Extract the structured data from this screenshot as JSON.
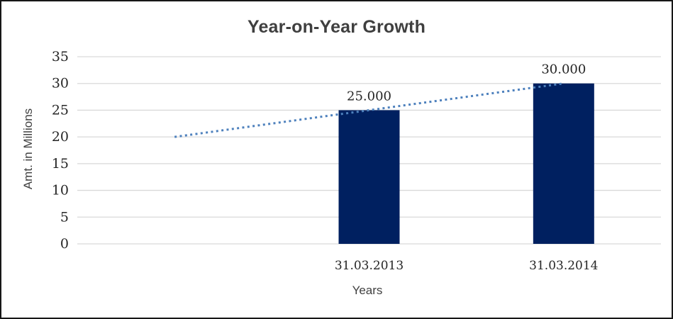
{
  "window": {
    "background": "#ffffff",
    "border_color": "#161616"
  },
  "chart_data": {
    "type": "bar",
    "title": "Year-on-Year Growth",
    "xlabel": "Years",
    "ylabel": "Amt. in Millions",
    "categories": [
      "31.03.2013",
      "31.03.2014"
    ],
    "values": [
      25,
      30
    ],
    "value_labels": [
      "25.000",
      "30.000"
    ],
    "ylim": [
      0,
      35
    ],
    "yticks": [
      0,
      5,
      10,
      15,
      20,
      25,
      30,
      35
    ],
    "grid": true,
    "legend_position": "none",
    "num_slots": 3,
    "bar_slots": [
      1,
      2
    ],
    "trendline": {
      "style": "dotted",
      "points": [
        {
          "slot": 0,
          "value": 20
        },
        {
          "slot": 2,
          "value": 30
        }
      ]
    },
    "colors": {
      "bar": "#002060",
      "trendline": "#4E81BD",
      "gridline": "#D9D9D9",
      "title_text": "#3F3F3F",
      "number_text": "#262626",
      "axis_title_text": "#404040"
    }
  }
}
